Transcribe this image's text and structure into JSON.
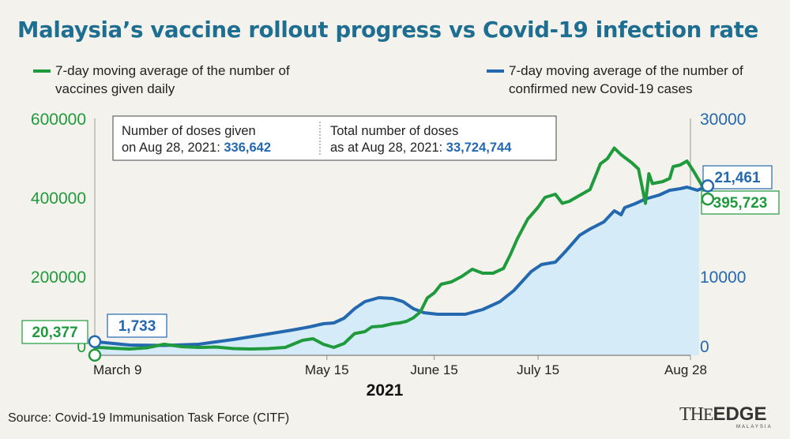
{
  "title": "Malaysia’s vaccine rollout progress vs Covid-19 infection rate",
  "legend": {
    "green": "7-day moving average of the number of vaccines given daily",
    "blue": "7-day moving average of the number of confirmed new Covid-19 cases"
  },
  "infobox": {
    "left_line1": "Number of doses given",
    "left_line2_prefix": "on Aug 28, 2021: ",
    "left_value": "336,642",
    "right_line1": "Total number of doses",
    "right_line2_prefix": "as at Aug 28, 2021: ",
    "right_value": "33,724,744"
  },
  "callouts": {
    "vaccine_start": "20,377",
    "cases_start": "1,733",
    "cases_end": "21,461",
    "vaccine_end": "395,723"
  },
  "source": "Source: Covid-19 Immunisation Task Force (CITF)",
  "logo": {
    "text": "THEEDGE",
    "sub": "MALAYSIA"
  },
  "colors": {
    "vaccine": "#1f9a3c",
    "cases": "#2468b0",
    "area": "#d6ebf8",
    "title": "#1e6e92"
  },
  "chart_data": {
    "type": "line",
    "xlabel": "2021",
    "x_ticks": [
      "March 9",
      "May 15",
      "June 15",
      "July 15",
      "Aug 28"
    ],
    "x_tick_days": [
      0,
      67,
      98,
      128,
      172
    ],
    "x_range_days": [
      0,
      172
    ],
    "y_left": {
      "ticks": [
        "0",
        "200000",
        "400000",
        "600000"
      ],
      "range": [
        0,
        600000
      ]
    },
    "y_right": {
      "ticks": [
        "0",
        "10000",
        "20000",
        "30000"
      ],
      "range": [
        0,
        30000
      ]
    },
    "series": [
      {
        "name": "7-day moving average of the number of vaccines given daily",
        "axis": "left",
        "points": [
          [
            0,
            20377
          ],
          [
            5,
            18000
          ],
          [
            10,
            16000
          ],
          [
            15,
            19000
          ],
          [
            20,
            28000
          ],
          [
            25,
            22000
          ],
          [
            30,
            20000
          ],
          [
            35,
            21000
          ],
          [
            40,
            17000
          ],
          [
            45,
            16000
          ],
          [
            50,
            17000
          ],
          [
            55,
            20000
          ],
          [
            60,
            38000
          ],
          [
            63,
            42000
          ],
          [
            66,
            28000
          ],
          [
            69,
            20000
          ],
          [
            72,
            30000
          ],
          [
            75,
            55000
          ],
          [
            78,
            60000
          ],
          [
            80,
            72000
          ],
          [
            83,
            74000
          ],
          [
            86,
            80000
          ],
          [
            88,
            82000
          ],
          [
            90,
            86000
          ],
          [
            92,
            95000
          ],
          [
            94,
            110000
          ],
          [
            96,
            145000
          ],
          [
            98,
            158000
          ],
          [
            100,
            180000
          ],
          [
            103,
            186000
          ],
          [
            106,
            200000
          ],
          [
            109,
            218000
          ],
          [
            112,
            208000
          ],
          [
            115,
            208000
          ],
          [
            118,
            220000
          ],
          [
            120,
            255000
          ],
          [
            122,
            295000
          ],
          [
            125,
            345000
          ],
          [
            128,
            375000
          ],
          [
            130,
            400000
          ],
          [
            133,
            408000
          ],
          [
            135,
            385000
          ],
          [
            137,
            390000
          ],
          [
            140,
            405000
          ],
          [
            143,
            420000
          ],
          [
            146,
            485000
          ],
          [
            148,
            498000
          ],
          [
            150,
            525000
          ],
          [
            152,
            508000
          ],
          [
            155,
            488000
          ],
          [
            157,
            472000
          ],
          [
            159,
            385000
          ],
          [
            160,
            460000
          ],
          [
            161,
            435000
          ],
          [
            164,
            440000
          ],
          [
            166,
            448000
          ],
          [
            167,
            478000
          ],
          [
            169,
            482000
          ],
          [
            171,
            492000
          ],
          [
            173,
            465000
          ],
          [
            175,
            435000
          ],
          [
            177,
            395723
          ]
        ]
      },
      {
        "name": "7-day moving average of the number of confirmed new Covid-19 cases",
        "axis": "right",
        "points": [
          [
            0,
            1733
          ],
          [
            10,
            1300
          ],
          [
            20,
            1250
          ],
          [
            30,
            1400
          ],
          [
            40,
            2000
          ],
          [
            50,
            2700
          ],
          [
            57,
            3200
          ],
          [
            62,
            3600
          ],
          [
            66,
            4000
          ],
          [
            69,
            4100
          ],
          [
            72,
            4700
          ],
          [
            75,
            5900
          ],
          [
            78,
            6800
          ],
          [
            82,
            7300
          ],
          [
            86,
            7200
          ],
          [
            89,
            6800
          ],
          [
            92,
            5900
          ],
          [
            95,
            5400
          ],
          [
            99,
            5200
          ],
          [
            103,
            5200
          ],
          [
            107,
            5200
          ],
          [
            112,
            5800
          ],
          [
            117,
            6800
          ],
          [
            121,
            8200
          ],
          [
            126,
            10600
          ],
          [
            129,
            11500
          ],
          [
            133,
            11800
          ],
          [
            136,
            13200
          ],
          [
            140,
            15200
          ],
          [
            143,
            16000
          ],
          [
            147,
            16900
          ],
          [
            150,
            18300
          ],
          [
            152,
            17800
          ],
          [
            153,
            18700
          ],
          [
            156,
            19200
          ],
          [
            159,
            19800
          ],
          [
            163,
            20300
          ],
          [
            166,
            20900
          ],
          [
            169,
            21100
          ],
          [
            171,
            21300
          ],
          [
            174,
            20900
          ],
          [
            177,
            21461
          ]
        ]
      }
    ]
  }
}
